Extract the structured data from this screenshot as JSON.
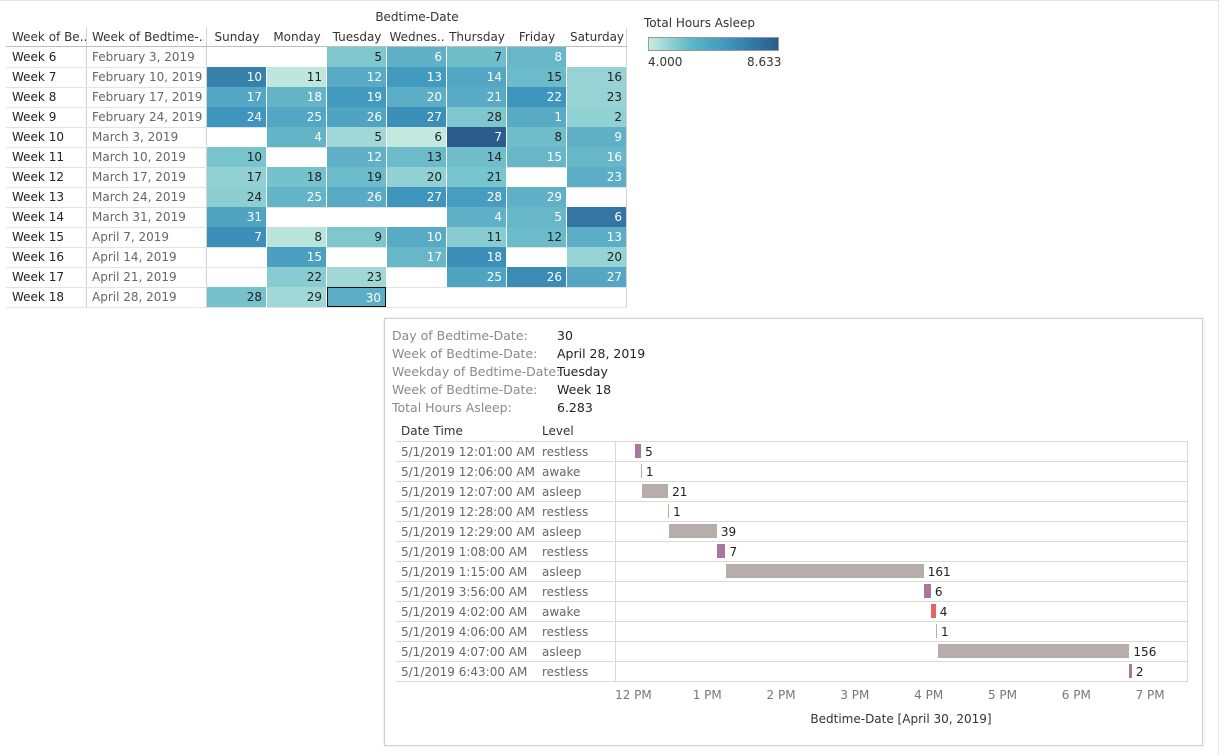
{
  "calendar": {
    "title": "Bedtime-Date",
    "headers": {
      "week": "Week of Be..",
      "week_date": "Week of Bedtime-..",
      "days": [
        "Sunday",
        "Monday",
        "Tuesday",
        "Wednes..",
        "Thursday",
        "Friday",
        "Saturday"
      ]
    },
    "rows": [
      {
        "week": "Week 6",
        "date": "February 3, 2019",
        "cells": [
          null,
          null,
          {
            "d": "5",
            "h": 5.5
          },
          {
            "d": "6",
            "h": 6.2
          },
          {
            "d": "7",
            "h": 5.8
          },
          {
            "d": "8",
            "h": 6.0
          },
          null
        ]
      },
      {
        "week": "Week 7",
        "date": "February 10, 2019",
        "cells": [
          {
            "d": "10",
            "h": 7.6
          },
          {
            "d": "11",
            "h": 4.2
          },
          {
            "d": "12",
            "h": 6.4
          },
          {
            "d": "13",
            "h": 6.9
          },
          {
            "d": "14",
            "h": 6.5
          },
          {
            "d": "15",
            "h": 5.9
          },
          {
            "d": "16",
            "h": 5.0
          }
        ]
      },
      {
        "week": "Week 8",
        "date": "February 17, 2019",
        "cells": [
          {
            "d": "17",
            "h": 6.5
          },
          {
            "d": "18",
            "h": 6.1
          },
          {
            "d": "19",
            "h": 6.9
          },
          {
            "d": "20",
            "h": 6.3
          },
          {
            "d": "21",
            "h": 6.4
          },
          {
            "d": "22",
            "h": 7.0
          },
          {
            "d": "23",
            "h": 5.0
          }
        ]
      },
      {
        "week": "Week 9",
        "date": "February 24, 2019",
        "cells": [
          {
            "d": "24",
            "h": 7.0
          },
          {
            "d": "25",
            "h": 6.5
          },
          {
            "d": "26",
            "h": 6.6
          },
          {
            "d": "27",
            "h": 7.2
          },
          {
            "d": "28",
            "h": 5.5
          },
          {
            "d": "1",
            "h": 6.4
          },
          {
            "d": "2",
            "h": 5.1
          }
        ]
      },
      {
        "week": "Week 10",
        "date": "March 3, 2019",
        "cells": [
          null,
          {
            "d": "4",
            "h": 6.1
          },
          {
            "d": "5",
            "h": 4.8
          },
          {
            "d": "6",
            "h": 4.1
          },
          {
            "d": "7",
            "h": 8.6
          },
          {
            "d": "8",
            "h": 5.8
          },
          {
            "d": "9",
            "h": 6.2
          }
        ]
      },
      {
        "week": "Week 11",
        "date": "March 10, 2019",
        "cells": [
          {
            "d": "10",
            "h": 5.6
          },
          null,
          {
            "d": "12",
            "h": 6.2
          },
          {
            "d": "13",
            "h": 5.9
          },
          {
            "d": "14",
            "h": 5.8
          },
          {
            "d": "15",
            "h": 6.0
          },
          {
            "d": "16",
            "h": 6.0
          }
        ]
      },
      {
        "week": "Week 12",
        "date": "March 17, 2019",
        "cells": [
          {
            "d": "17",
            "h": 5.1
          },
          {
            "d": "18",
            "h": 5.7
          },
          {
            "d": "19",
            "h": 5.9
          },
          {
            "d": "20",
            "h": 5.1
          },
          {
            "d": "21",
            "h": 5.6
          },
          null,
          {
            "d": "23",
            "h": 6.3
          }
        ]
      },
      {
        "week": "Week 13",
        "date": "March 24, 2019",
        "cells": [
          {
            "d": "24",
            "h": 5.2
          },
          {
            "d": "25",
            "h": 6.1
          },
          {
            "d": "26",
            "h": 6.4
          },
          {
            "d": "27",
            "h": 7.0
          },
          {
            "d": "28",
            "h": 6.8
          },
          {
            "d": "29",
            "h": 6.2
          },
          null
        ]
      },
      {
        "week": "Week 14",
        "date": "March 31, 2019",
        "cells": [
          {
            "d": "31",
            "h": 6.6
          },
          null,
          null,
          null,
          {
            "d": "4",
            "h": 6.2
          },
          {
            "d": "5",
            "h": 6.0
          },
          {
            "d": "6",
            "h": 7.9
          }
        ]
      },
      {
        "week": "Week 15",
        "date": "April 7, 2019",
        "cells": [
          {
            "d": "7",
            "h": 7.2
          },
          {
            "d": "8",
            "h": 4.3
          },
          {
            "d": "9",
            "h": 5.5
          },
          {
            "d": "10",
            "h": 6.4
          },
          {
            "d": "11",
            "h": 5.3
          },
          {
            "d": "12",
            "h": 5.9
          },
          {
            "d": "13",
            "h": 6.3
          }
        ]
      },
      {
        "week": "Week 16",
        "date": "April 14, 2019",
        "cells": [
          null,
          {
            "d": "15",
            "h": 6.7
          },
          null,
          {
            "d": "17",
            "h": 6.0
          },
          {
            "d": "18",
            "h": 7.2
          },
          null,
          {
            "d": "20",
            "h": 5.0
          }
        ]
      },
      {
        "week": "Week 17",
        "date": "April 21, 2019",
        "cells": [
          null,
          {
            "d": "22",
            "h": 5.3
          },
          {
            "d": "23",
            "h": 4.8
          },
          null,
          {
            "d": "25",
            "h": 6.6
          },
          {
            "d": "26",
            "h": 7.3
          },
          {
            "d": "27",
            "h": 6.5
          }
        ]
      },
      {
        "week": "Week 18",
        "date": "April 28, 2019",
        "cells": [
          {
            "d": "28",
            "h": 5.7
          },
          {
            "d": "29",
            "h": 4.8
          },
          {
            "d": "30",
            "h": 6.283,
            "sel": true
          },
          null,
          null,
          null,
          null
        ]
      }
    ]
  },
  "legend": {
    "title": "Total Hours Asleep",
    "min_label": "4.000",
    "max_label": "8.633",
    "min": 4.0,
    "max": 8.633
  },
  "tooltip": {
    "fields": [
      {
        "k": "Day of Bedtime-Date:",
        "v": "30"
      },
      {
        "k": "Week of Bedtime-Date:",
        "v": "April 28, 2019"
      },
      {
        "k": "Weekday of Bedtime-Date:",
        "v": "Tuesday"
      },
      {
        "k": "Week of Bedtime-Date:",
        "v": "Week 18"
      },
      {
        "k": "Total Hours Asleep:",
        "v": "6.283"
      }
    ],
    "col_datetime": "Date Time",
    "col_level": "Level",
    "axis_title": "Bedtime-Date [April 30, 2019]"
  },
  "chart_data": {
    "type": "bar",
    "orientation": "horizontal (gantt)",
    "x_axis_ticks": [
      "12 PM",
      "1 PM",
      "2 PM",
      "3 PM",
      "4 PM",
      "5 PM",
      "6 PM",
      "7 PM"
    ],
    "x_start_hours": 11.75,
    "x_end_hours": 19.5,
    "colors": {
      "restless": "#a9779d",
      "awake": "#e06666",
      "asleep": "#b7aeab",
      "awake_thin": "#b7aeab"
    },
    "rows": [
      {
        "datetime": "5/1/2019 12:01:00 AM",
        "level": "restless",
        "start_h": 12.02,
        "minutes": 5,
        "label": "5"
      },
      {
        "datetime": "5/1/2019 12:06:00 AM",
        "level": "awake",
        "start_h": 12.1,
        "minutes": 1,
        "label": "1",
        "thin": true
      },
      {
        "datetime": "5/1/2019 12:07:00 AM",
        "level": "asleep",
        "start_h": 12.12,
        "minutes": 21,
        "label": "21"
      },
      {
        "datetime": "5/1/2019 12:28:00 AM",
        "level": "restless",
        "start_h": 12.47,
        "minutes": 1,
        "label": "1",
        "thin": true
      },
      {
        "datetime": "5/1/2019 12:29:00 AM",
        "level": "asleep",
        "start_h": 12.48,
        "minutes": 39,
        "label": "39"
      },
      {
        "datetime": "5/1/2019 1:08:00 AM",
        "level": "restless",
        "start_h": 13.13,
        "minutes": 7,
        "label": "7"
      },
      {
        "datetime": "5/1/2019 1:15:00 AM",
        "level": "asleep",
        "start_h": 13.25,
        "minutes": 161,
        "label": "161"
      },
      {
        "datetime": "5/1/2019 3:56:00 AM",
        "level": "restless",
        "start_h": 15.93,
        "minutes": 6,
        "label": "6"
      },
      {
        "datetime": "5/1/2019 4:02:00 AM",
        "level": "awake",
        "start_h": 16.03,
        "minutes": 4,
        "label": "4"
      },
      {
        "datetime": "5/1/2019 4:06:00 AM",
        "level": "restless",
        "start_h": 16.1,
        "minutes": 1,
        "label": "1",
        "thin": true
      },
      {
        "datetime": "5/1/2019 4:07:00 AM",
        "level": "asleep",
        "start_h": 16.12,
        "minutes": 156,
        "label": "156"
      },
      {
        "datetime": "5/1/2019 6:43:00 AM",
        "level": "restless",
        "start_h": 18.72,
        "minutes": 2,
        "label": "2"
      }
    ]
  }
}
